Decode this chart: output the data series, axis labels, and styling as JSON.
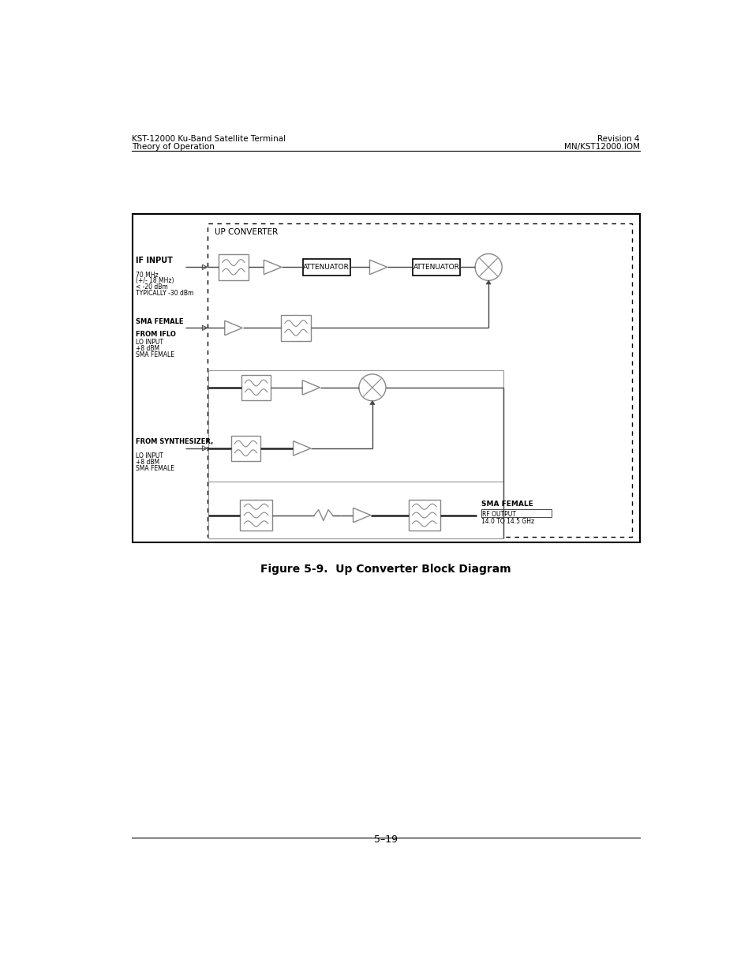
{
  "page_header_left": "KST-12000 Ku-Band Satellite Terminal\nTheory of Operation",
  "page_header_right": "Revision 4\nMN/KST12000.IOM",
  "figure_caption": "Figure 5-9.  Up Converter Block Diagram",
  "page_number": "5–19",
  "background": "#ffffff",
  "up_converter_label": "UP CONVERTER",
  "if_input_label": "IF INPUT",
  "if_input_specs": "70 MHz\n(+/- 18 MHz)\n< -20 dBm\nTYPICALLY -30 dBm",
  "sma_female_iflo_label": "SMA FEMALE\nFROM IFLO",
  "lo_input_label": "LO INPUT",
  "lo_input_specs": "+8 dBM\nSMA FEMALE",
  "from_synth_label": "FROM SYNTHESIZER,",
  "lo_input2_label": "LO INPUT",
  "lo_input2_specs": "+8 dBM\nSMA FEMALE",
  "sma_female_out_label": "SMA FEMALE",
  "rf_output_label": "RF OUTPUT",
  "rf_output_specs": "14.0 TO 14.5 GHz",
  "attenuator1_label": "ATTENUATOR",
  "attenuator2_label": "ATTENUATOR",
  "lc": "#888888",
  "dk": "#444444"
}
